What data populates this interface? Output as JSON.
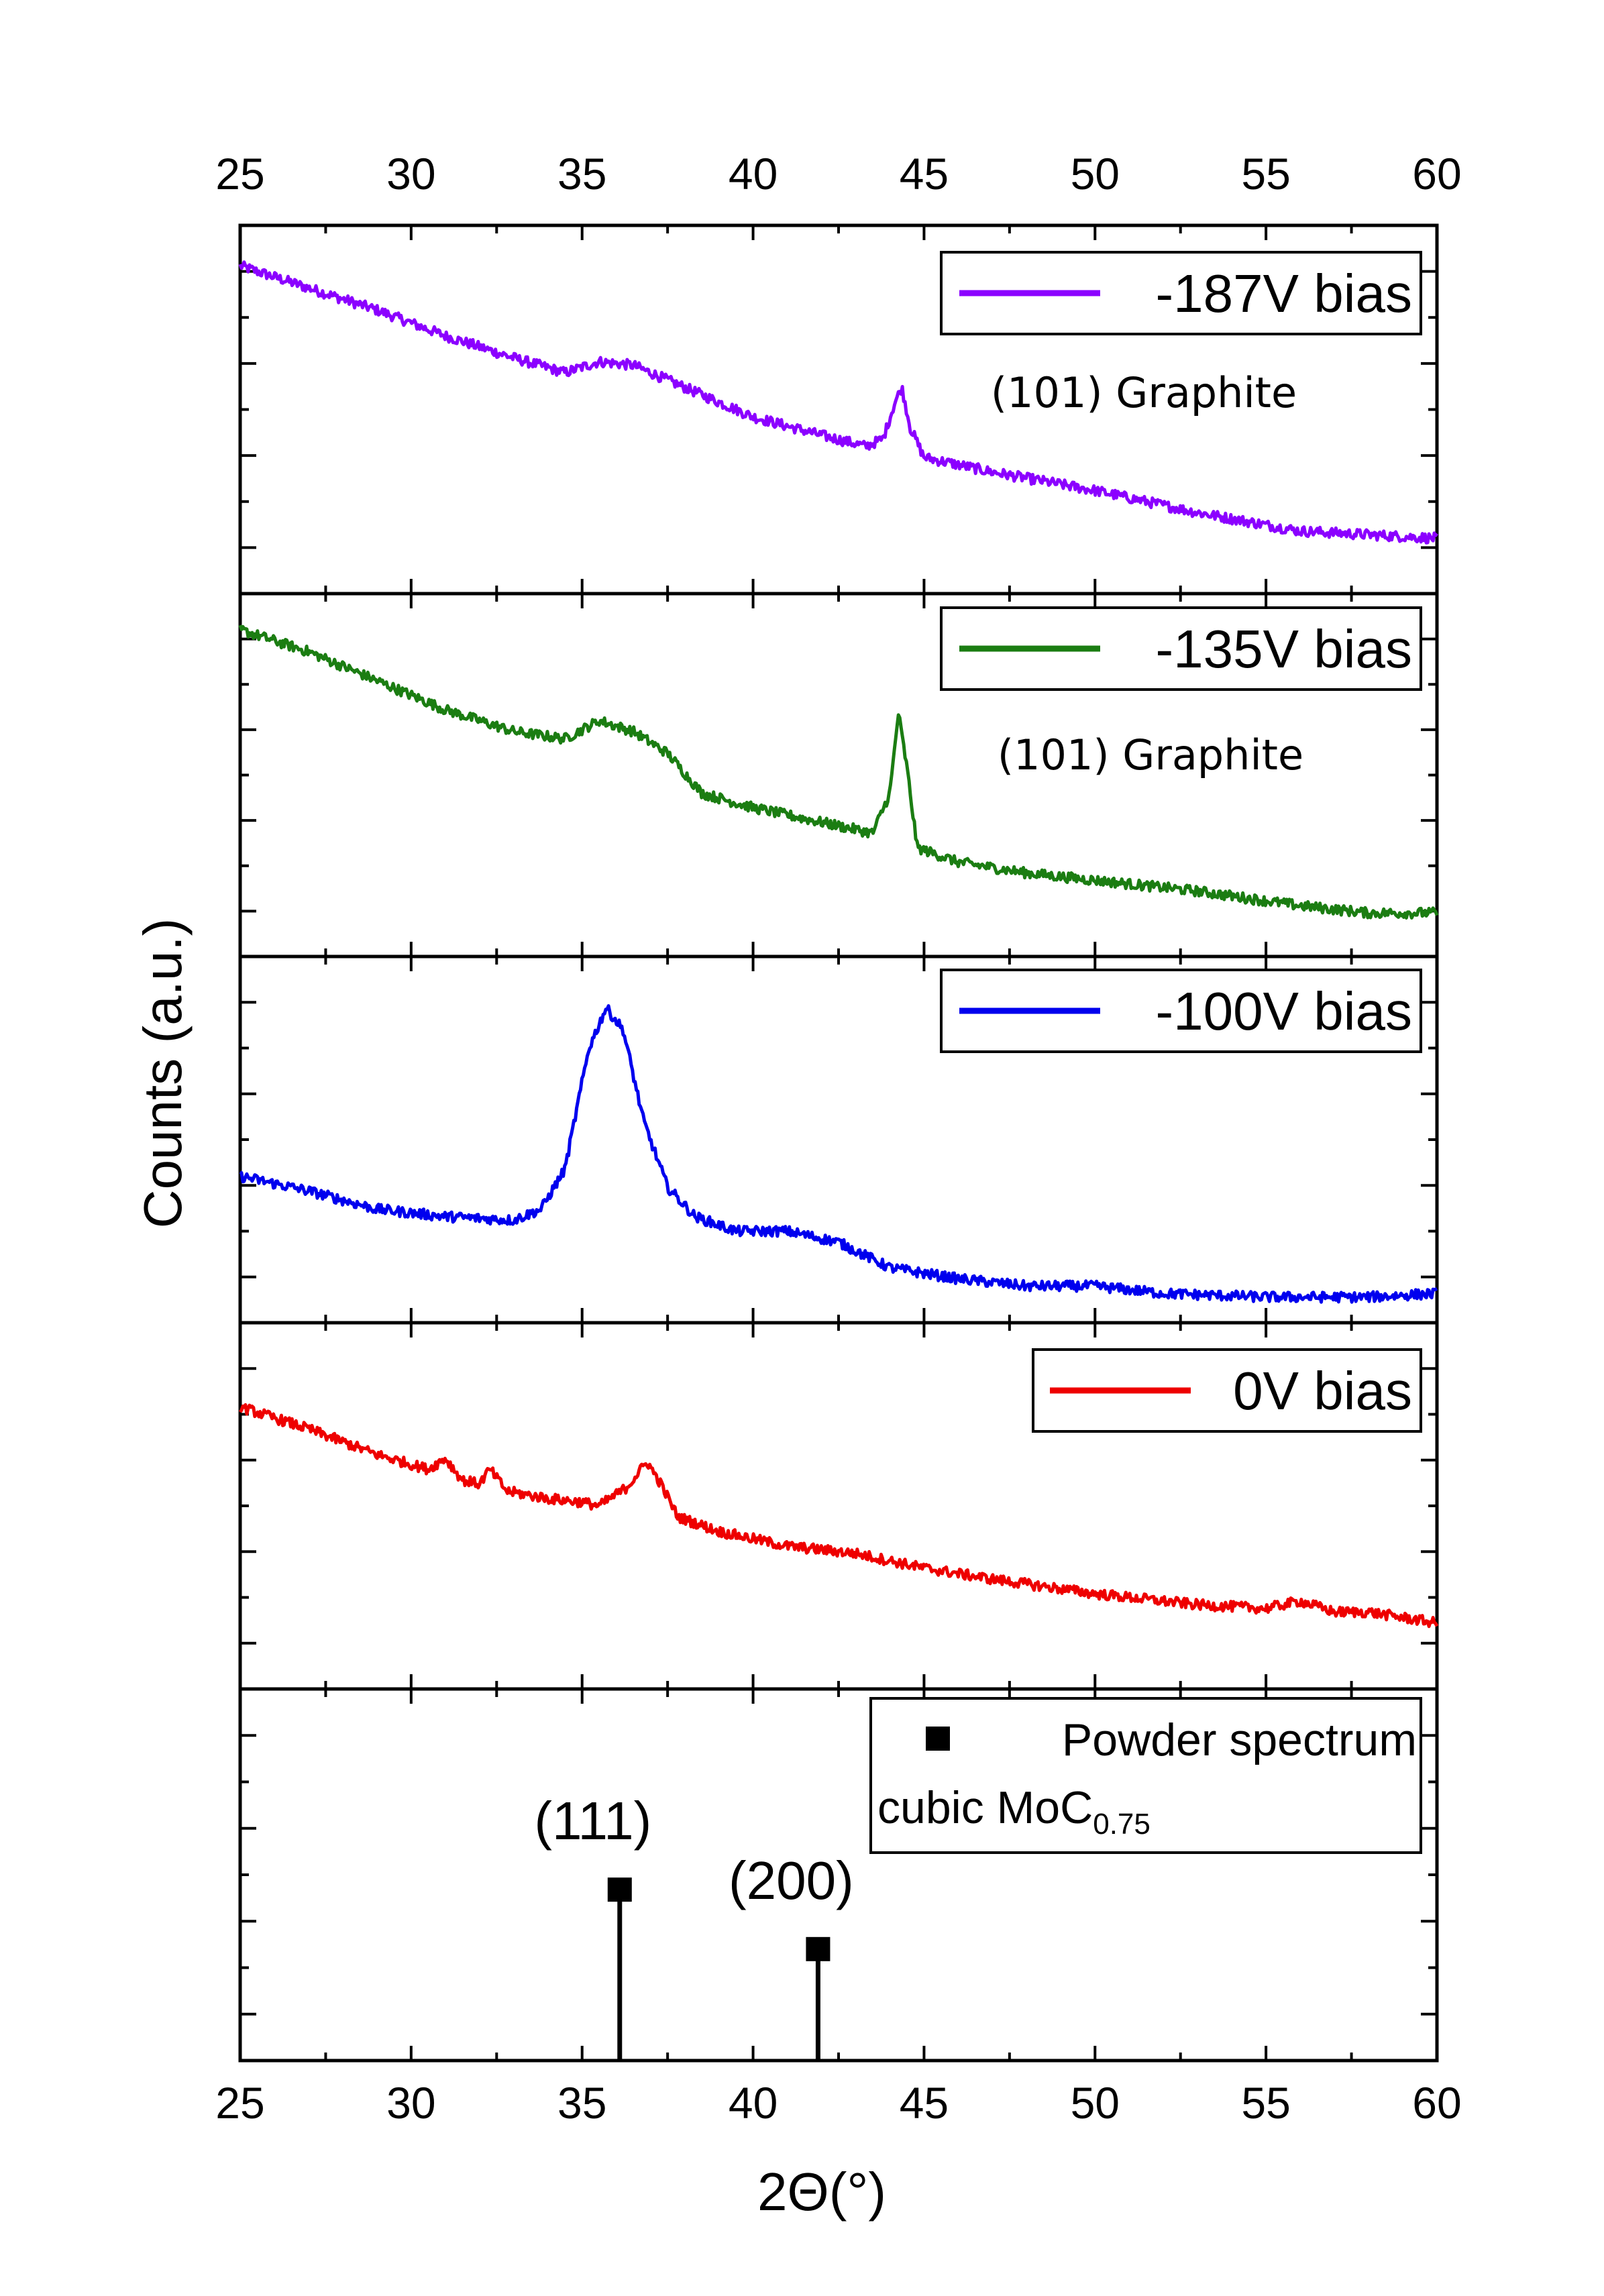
{
  "chart_data": {
    "type": "line",
    "xlabel": "2Θ(°)",
    "ylabel": "Counts (a.u.)",
    "xlim": [
      25,
      60
    ],
    "xticks": [
      25,
      30,
      35,
      40,
      45,
      50,
      55,
      60
    ],
    "xtick_labels": [
      "25",
      "30",
      "35",
      "40",
      "45",
      "50",
      "55",
      "60"
    ],
    "panels": [
      {
        "name": "-187V",
        "legend": "-187V bias",
        "color": "#8b00ff",
        "annotation": "(101) Graphite",
        "ylim": [
          0,
          1
        ],
        "points": [
          [
            25,
            0.89
          ],
          [
            27,
            0.83
          ],
          [
            29,
            0.77
          ],
          [
            31,
            0.7
          ],
          [
            33,
            0.64
          ],
          [
            34.5,
            0.6
          ],
          [
            35.5,
            0.63
          ],
          [
            36.5,
            0.62
          ],
          [
            38,
            0.56
          ],
          [
            40,
            0.48
          ],
          [
            42,
            0.43
          ],
          [
            43.3,
            0.4
          ],
          [
            43.8,
            0.42
          ],
          [
            44.15,
            0.52
          ],
          [
            44.35,
            0.56
          ],
          [
            44.6,
            0.45
          ],
          [
            45,
            0.37
          ],
          [
            47,
            0.33
          ],
          [
            50,
            0.28
          ],
          [
            53,
            0.22
          ],
          [
            56,
            0.17
          ],
          [
            58,
            0.16
          ],
          [
            60,
            0.15
          ]
        ]
      },
      {
        "name": "-135V",
        "legend": "-135V bias",
        "color": "#1b7d12",
        "annotation": "(101) Graphite",
        "ylim": [
          0,
          1
        ],
        "points": [
          [
            25,
            0.9
          ],
          [
            27,
            0.84
          ],
          [
            29,
            0.76
          ],
          [
            31,
            0.68
          ],
          [
            33,
            0.62
          ],
          [
            34.5,
            0.6
          ],
          [
            35.5,
            0.65
          ],
          [
            36.5,
            0.62
          ],
          [
            37.5,
            0.56
          ],
          [
            38.5,
            0.45
          ],
          [
            40,
            0.41
          ],
          [
            42,
            0.37
          ],
          [
            43.5,
            0.34
          ],
          [
            44.0,
            0.45
          ],
          [
            44.25,
            0.67
          ],
          [
            44.5,
            0.52
          ],
          [
            44.8,
            0.3
          ],
          [
            46,
            0.26
          ],
          [
            48,
            0.23
          ],
          [
            50,
            0.21
          ],
          [
            53,
            0.18
          ],
          [
            56,
            0.14
          ],
          [
            58,
            0.12
          ],
          [
            60,
            0.12
          ]
        ]
      },
      {
        "name": "-100V",
        "legend": "-100V bias",
        "color": "#0000ee",
        "annotation": "",
        "ylim": [
          0,
          1
        ],
        "points": [
          [
            25,
            0.4
          ],
          [
            27,
            0.36
          ],
          [
            29,
            0.31
          ],
          [
            31,
            0.29
          ],
          [
            33,
            0.28
          ],
          [
            33.8,
            0.31
          ],
          [
            34.5,
            0.42
          ],
          [
            35.2,
            0.75
          ],
          [
            35.7,
            0.86
          ],
          [
            36.2,
            0.8
          ],
          [
            36.8,
            0.55
          ],
          [
            37.5,
            0.37
          ],
          [
            38.3,
            0.29
          ],
          [
            39.5,
            0.25
          ],
          [
            41,
            0.25
          ],
          [
            42.5,
            0.22
          ],
          [
            44,
            0.15
          ],
          [
            46,
            0.12
          ],
          [
            48,
            0.1
          ],
          [
            50,
            0.1
          ],
          [
            52,
            0.08
          ],
          [
            55,
            0.07
          ],
          [
            58,
            0.07
          ],
          [
            60,
            0.08
          ]
        ]
      },
      {
        "name": "0V",
        "legend": "0V bias",
        "color": "#ee0000",
        "annotation": "",
        "ylim": [
          0,
          1
        ],
        "points": [
          [
            25,
            0.77
          ],
          [
            27,
            0.71
          ],
          [
            29,
            0.64
          ],
          [
            30.5,
            0.6
          ],
          [
            31.0,
            0.63
          ],
          [
            31.5,
            0.57
          ],
          [
            32.0,
            0.56
          ],
          [
            32.3,
            0.6
          ],
          [
            32.8,
            0.54
          ],
          [
            34.0,
            0.52
          ],
          [
            35.0,
            0.51
          ],
          [
            35.5,
            0.5
          ],
          [
            36.3,
            0.55
          ],
          [
            36.9,
            0.62
          ],
          [
            37.3,
            0.56
          ],
          [
            37.8,
            0.47
          ],
          [
            39,
            0.43
          ],
          [
            41,
            0.39
          ],
          [
            43,
            0.37
          ],
          [
            45,
            0.33
          ],
          [
            47,
            0.3
          ],
          [
            50,
            0.26
          ],
          [
            53,
            0.23
          ],
          [
            55,
            0.22
          ],
          [
            56,
            0.24
          ],
          [
            57,
            0.21
          ],
          [
            58,
            0.21
          ],
          [
            60,
            0.18
          ]
        ]
      }
    ],
    "reference": {
      "legend": "Powder spectrum",
      "legend_line2_main": "cubic MoC",
      "legend_line2_sub": "0.75",
      "ylim": [
        0,
        1
      ],
      "peaks": [
        {
          "x": 36.1,
          "y": 0.46,
          "label": "(111)"
        },
        {
          "x": 41.9,
          "y": 0.3,
          "label": "(200)"
        }
      ]
    }
  }
}
